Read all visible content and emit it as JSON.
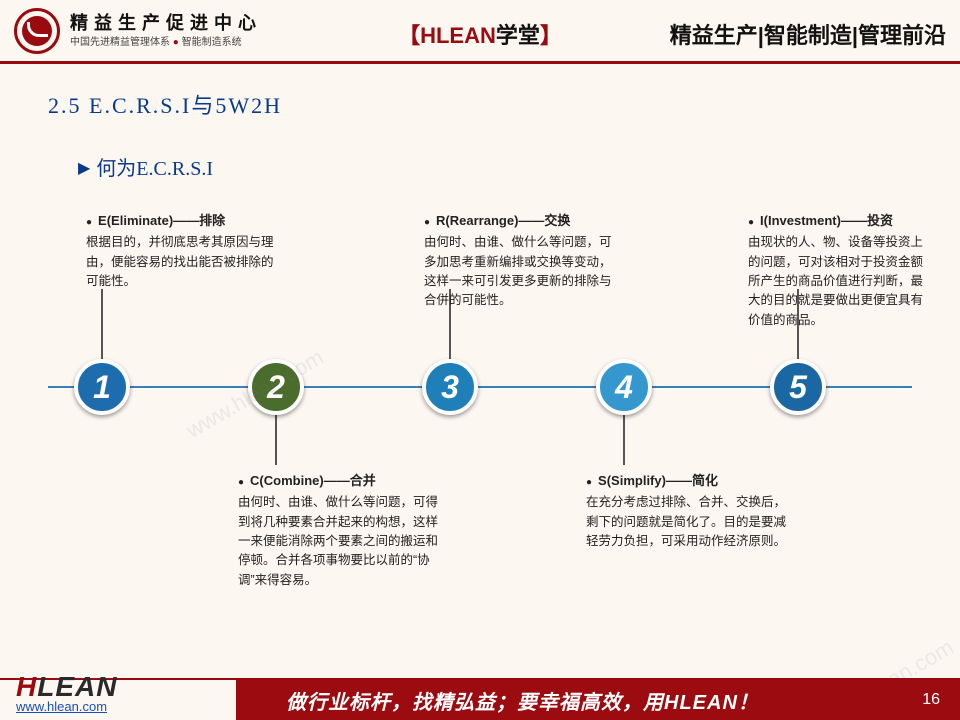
{
  "header": {
    "org_main": "精益生产促进中心",
    "org_sub_a": "中国先进精益管理体系",
    "org_sub_b": "智能制造系统",
    "center_prefix_bracket": "【",
    "center_h": "HLEAN",
    "center_text": "学堂",
    "center_suffix_bracket": "】",
    "right": "精益生产|智能制造|管理前沿"
  },
  "section": {
    "num": "2.5 E.C.R.S.I与5W2H",
    "sub": "何为E.C.R.S.I"
  },
  "steps": [
    {
      "n": "1",
      "color": "#1d6cae",
      "pos": "top",
      "title": "E(Eliminate)——排除",
      "body": "根据目的，并彻底思考其原因与理由，便能容易的找出能否被排除的可能性。"
    },
    {
      "n": "2",
      "color": "#4a6d2e",
      "pos": "bottom",
      "title": "C(Combine)——合并",
      "body": "由何时、由谁、做什么等问题，可得到将几种要素合并起来的构想，这样一来便能消除两个要素之间的搬运和停顿。合并各项事物要比以前的“协调”来得容易。"
    },
    {
      "n": "3",
      "color": "#1f80b9",
      "pos": "top",
      "title": "R(Rearrange)——交换",
      "body": "由何时、由谁、做什么等问题，可多加思考重新编排或交换等变动，这样一来可引发更多更新的排除与合併的可能性。"
    },
    {
      "n": "4",
      "color": "#3498cf",
      "pos": "bottom",
      "title": "S(Simplify)——简化",
      "body": "在充分考虑过排除、合并、交换后，剩下的问题就是简化了。目的是要减轻劳力负担，可采用动作经济原则。"
    },
    {
      "n": "5",
      "color": "#1a67a3",
      "pos": "top",
      "title": "I(Investment)——投资",
      "body": "由现状的人、物、设备等投资上的问题，可对该相对于投资金额所产生的商品价值进行判断，最大的目的就是要做出更便宜具有价值的商品。"
    }
  ],
  "footer": {
    "logo_h": "H",
    "logo_rest": "LEAN",
    "url": "www.hlean.com",
    "slogan_a": "做行业标杆，找精弘益；要幸福高效，用",
    "slogan_b": "HLEAN",
    "slogan_c": "！",
    "page": "16"
  },
  "watermark": "www.hlean.com"
}
